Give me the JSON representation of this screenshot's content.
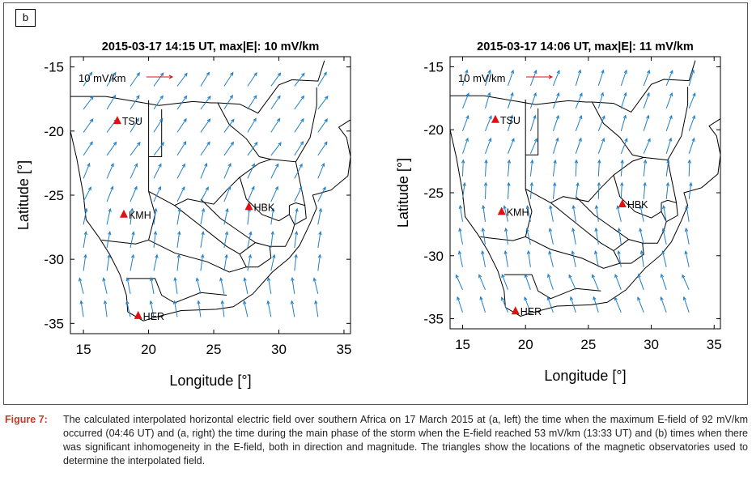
{
  "panel_tag": "b",
  "caption": {
    "label": "Figure 7:",
    "text": "The calculated interpolated horizontal electric field over southern Africa on 17 March 2015 at (a, left) the time when the maximum E-field of 92 mV/km occurred (04:46 UT) and (a, right) the time during the main phase of the storm when the E-field reached 53 mV/km (13:33 UT) and (b) times when there was significant inhomogeneity in the E-field, both in direction and magnitude. The triangles show the locations of the magnetic observatories used to determine the interpolated field."
  },
  "colors": {
    "arrow": "#1f7fc4",
    "observatory": "#e01010",
    "scale_arrow": "#e01010",
    "border": "#000000"
  },
  "chart_data": [
    {
      "type": "quiver",
      "title": "2015-03-17 14:15 UT, max|E|: 10 mV/km",
      "xlabel": "Longitude [°]",
      "ylabel": "Latitude [°]",
      "xlim": [
        14,
        35.5
      ],
      "ylim": [
        -35.8,
        -14.2
      ],
      "xticks": [
        "15",
        "20",
        "25",
        "30",
        "35"
      ],
      "yticks": [
        "-15",
        "-20",
        "-25",
        "-30",
        "-35"
      ],
      "scale_label": "10 mV/km",
      "observatories": [
        {
          "name": "TSU",
          "lon": 17.6,
          "lat": -19.2
        },
        {
          "name": "KMH",
          "lon": 18.1,
          "lat": -26.5
        },
        {
          "name": "HBK",
          "lon": 27.7,
          "lat": -25.9
        },
        {
          "name": "HER",
          "lon": 19.2,
          "lat": -34.4
        }
      ],
      "field_direction_deg": [
        {
          "lat_min": -22,
          "lat_max": -16,
          "angle": 55
        },
        {
          "lat_min": -27,
          "lat_max": -22,
          "angle": 65
        },
        {
          "lat_min": -31,
          "lat_max": -27,
          "angle": 80
        },
        {
          "lat_min": -36,
          "lat_max": -31,
          "angle": 100
        }
      ]
    },
    {
      "type": "quiver",
      "title": "2015-03-17 14:06 UT, max|E|: 11 mV/km",
      "xlabel": "Longitude [°]",
      "ylabel": "Latitude [°]",
      "xlim": [
        14,
        35.5
      ],
      "ylim": [
        -35.8,
        -14.2
      ],
      "xticks": [
        "15",
        "20",
        "25",
        "30",
        "35"
      ],
      "yticks": [
        "-15",
        "-20",
        "-25",
        "-30",
        "-35"
      ],
      "scale_label": "10 mV/km",
      "observatories": [
        {
          "name": "TSU",
          "lon": 17.6,
          "lat": -19.2
        },
        {
          "name": "KMH",
          "lon": 18.1,
          "lat": -26.5
        },
        {
          "name": "HBK",
          "lon": 27.7,
          "lat": -25.9
        },
        {
          "name": "HER",
          "lon": 19.2,
          "lat": -34.4
        }
      ],
      "field_direction_deg": [
        {
          "lat_min": -22,
          "lat_max": -16,
          "angle": 70
        },
        {
          "lat_min": -27,
          "lat_max": -22,
          "angle": 85
        },
        {
          "lat_min": -31,
          "lat_max": -27,
          "angle": 100
        },
        {
          "lat_min": -36,
          "lat_max": -31,
          "angle": 110
        }
      ]
    }
  ]
}
